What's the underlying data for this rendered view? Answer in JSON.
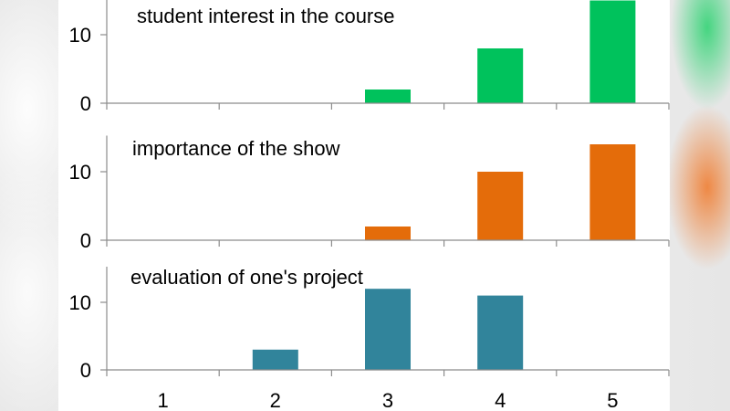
{
  "chart_data": {
    "type": "bar",
    "categories": [
      "1",
      "2",
      "3",
      "4",
      "5"
    ],
    "y_ticks": [
      "0",
      "10"
    ],
    "panels": [
      {
        "title": "student interest in the course",
        "color": "#00c25c",
        "values": [
          0,
          0,
          2,
          8,
          15
        ],
        "ylim": [
          0,
          15
        ]
      },
      {
        "title": "importance of the show",
        "color": "#e46c0a",
        "values": [
          0,
          0,
          2,
          10,
          14
        ],
        "ylim": [
          0,
          15
        ]
      },
      {
        "title": "evaluation of one's project",
        "color": "#31849b",
        "values": [
          0,
          3,
          12,
          11,
          0
        ],
        "ylim": [
          0,
          15
        ]
      }
    ]
  }
}
